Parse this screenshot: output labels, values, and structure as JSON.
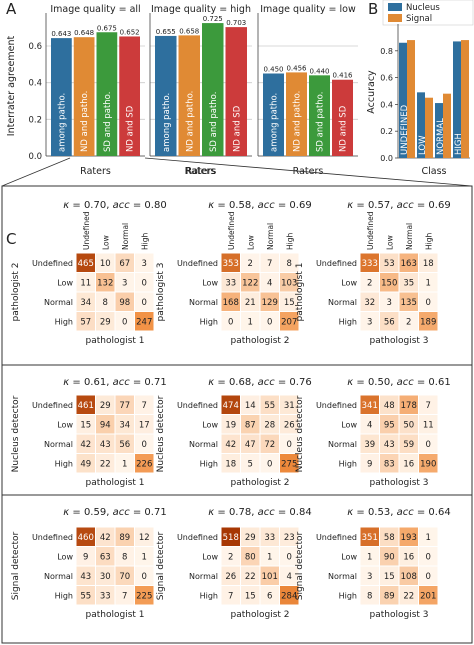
{
  "panels": {
    "a": "A",
    "b": "B",
    "c": "C"
  },
  "chart_data": [
    {
      "panel": "A",
      "type": "bar",
      "ylabel": "Interrater agreement",
      "yticks": [
        "0.0",
        "0.2",
        "0.4",
        "0.6"
      ],
      "ylim": [
        0,
        0.78
      ],
      "grid": true,
      "xlabel": "Raters",
      "shared_xlabel": "Raters",
      "categories": [
        "among patho.",
        "ND and patho.",
        "SD and patho.",
        "ND and SD"
      ],
      "colors": [
        "#2e6f9e",
        "#e08a34",
        "#3c9a3c",
        "#cc3b3b"
      ],
      "subplots": [
        {
          "title": "Image quality = all",
          "values": [
            0.643,
            0.648,
            0.675,
            0.652
          ],
          "labels": [
            "0.643",
            "0.648",
            "0.675",
            "0.652"
          ],
          "xlabel": "Raters"
        },
        {
          "title": "Image quality = high",
          "values": [
            0.655,
            0.658,
            0.725,
            0.703
          ],
          "labels": [
            "0.655",
            "0.658",
            "0.725",
            "0.703"
          ],
          "xlabel": "Raters"
        },
        {
          "title": "Image quality = low",
          "values": [
            0.45,
            0.456,
            0.44,
            0.416
          ],
          "labels": [
            "0.450",
            "0.456",
            "0.440",
            "0.416"
          ],
          "xlabel": "Raters"
        }
      ]
    },
    {
      "panel": "B",
      "type": "bar",
      "ylabel": "Accuracy",
      "xlabel": "Class",
      "yticks": [
        "0.0",
        "0.2",
        "0.4",
        "0.6",
        "0.8"
      ],
      "ylim": [
        0,
        1.0
      ],
      "legend": "top",
      "categories": [
        "UNDEFINED",
        "LOW",
        "NORMAL",
        "HIGH"
      ],
      "series": [
        {
          "name": "Nucleus",
          "color": "#2e6f9e",
          "values": [
            0.86,
            0.49,
            0.41,
            0.87
          ]
        },
        {
          "name": "Signal",
          "color": "#e08a34",
          "values": [
            0.88,
            0.45,
            0.48,
            0.88
          ]
        }
      ]
    },
    {
      "panel": "C",
      "type": "heatmap",
      "classes": [
        "Undefined",
        "Low",
        "Normal",
        "High"
      ],
      "kappa_symbol": "κ",
      "acc_symbol": "acc",
      "rows": [
        [
          {
            "kappa": "0.70",
            "acc": "0.80",
            "ylabel": "pathologist 2",
            "xlabel": "pathologist 1",
            "matrix": [
              [
                465,
                10,
                67,
                3
              ],
              [
                11,
                132,
                3,
                0
              ],
              [
                34,
                8,
                98,
                0
              ],
              [
                57,
                29,
                0,
                247
              ]
            ]
          },
          {
            "kappa": "0.58",
            "acc": "0.69",
            "ylabel": "pathologist 3",
            "xlabel": "pathologist 2",
            "matrix": [
              [
                353,
                2,
                7,
                8
              ],
              [
                33,
                122,
                4,
                103
              ],
              [
                168,
                21,
                129,
                15
              ],
              [
                0,
                1,
                0,
                207
              ]
            ]
          },
          {
            "kappa": "0.57",
            "acc": "0.69",
            "ylabel": "pathologist 1",
            "xlabel": "pathologist 3",
            "matrix": [
              [
                333,
                53,
                163,
                18
              ],
              [
                2,
                150,
                35,
                1
              ],
              [
                32,
                3,
                135,
                0
              ],
              [
                3,
                56,
                2,
                189
              ]
            ]
          }
        ],
        [
          {
            "kappa": "0.61",
            "acc": "0.71",
            "ylabel": "Nucleus detector",
            "xlabel": "pathologist 1",
            "matrix": [
              [
                461,
                29,
                77,
                7
              ],
              [
                15,
                94,
                34,
                17
              ],
              [
                42,
                43,
                56,
                0
              ],
              [
                49,
                22,
                1,
                226
              ]
            ]
          },
          {
            "kappa": "0.68",
            "acc": "0.76",
            "ylabel": "Nucleus detector",
            "xlabel": "pathologist 2",
            "matrix": [
              [
                474,
                14,
                55,
                31
              ],
              [
                19,
                87,
                28,
                26
              ],
              [
                42,
                47,
                72,
                0
              ],
              [
                18,
                5,
                0,
                275
              ]
            ]
          },
          {
            "kappa": "0.50",
            "acc": "0.61",
            "ylabel": "Nucleus detector",
            "xlabel": "pathologist 3",
            "matrix": [
              [
                341,
                48,
                178,
                7
              ],
              [
                4,
                95,
                50,
                11
              ],
              [
                39,
                43,
                59,
                0
              ],
              [
                9,
                83,
                16,
                190
              ]
            ]
          }
        ],
        [
          {
            "kappa": "0.59",
            "acc": "0.71",
            "ylabel": "Signal detector",
            "xlabel": "pathologist 1",
            "matrix": [
              [
                460,
                42,
                89,
                12
              ],
              [
                9,
                63,
                8,
                1
              ],
              [
                43,
                30,
                70,
                0
              ],
              [
                55,
                33,
                7,
                225
              ]
            ]
          },
          {
            "kappa": "0.78",
            "acc": "0.84",
            "ylabel": "Signal detector",
            "xlabel": "pathologist 2",
            "matrix": [
              [
                518,
                29,
                33,
                23
              ],
              [
                2,
                80,
                1,
                0
              ],
              [
                26,
                22,
                101,
                4
              ],
              [
                7,
                15,
                6,
                284
              ]
            ]
          },
          {
            "kappa": "0.53",
            "acc": "0.64",
            "ylabel": "Signal detector",
            "xlabel": "pathologist 3",
            "matrix": [
              [
                351,
                58,
                193,
                1
              ],
              [
                1,
                90,
                16,
                0
              ],
              [
                3,
                15,
                108,
                0
              ],
              [
                8,
                89,
                22,
                201
              ]
            ]
          }
        ]
      ]
    }
  ]
}
